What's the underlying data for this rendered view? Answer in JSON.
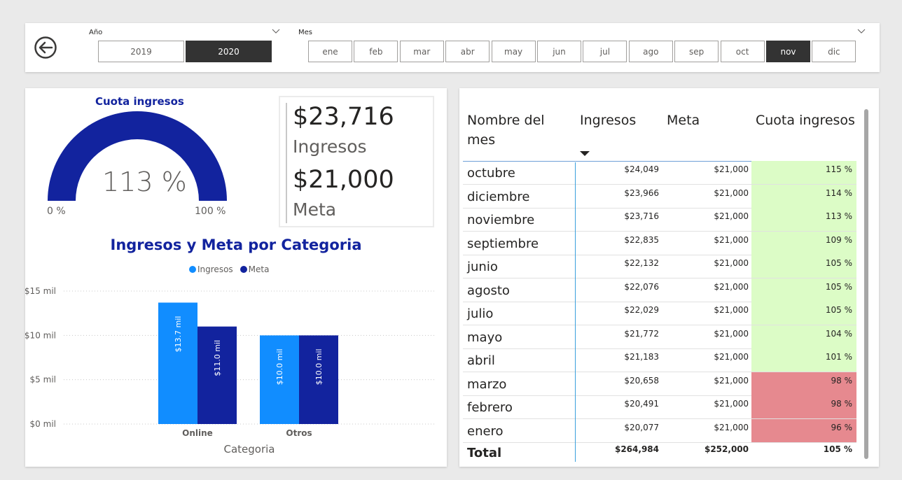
{
  "slicers": {
    "year": {
      "title": "Año",
      "options": [
        "2019",
        "2020"
      ],
      "selected": "2020"
    },
    "month": {
      "title": "Mes",
      "options": [
        "ene",
        "feb",
        "mar",
        "abr",
        "may",
        "jun",
        "jul",
        "ago",
        "sep",
        "oct",
        "nov",
        "dic"
      ],
      "selected": "nov"
    }
  },
  "gauge": {
    "title": "Cuota ingresos",
    "value": "113 %",
    "min": "0 %",
    "max": "100 %",
    "color": "#12239e"
  },
  "kpis": [
    {
      "value": "$23,716",
      "label": "Ingresos"
    },
    {
      "value": "$21,000",
      "label": "Meta"
    }
  ],
  "chart_data": {
    "type": "bar",
    "title": "Ingresos y Meta por Categoria",
    "xlabel": "Categoria",
    "ylabel": "",
    "categories": [
      "Online",
      "Otros"
    ],
    "series": [
      {
        "name": "Ingresos",
        "values": [
          13.7,
          10.0
        ],
        "labels": [
          "$13.7 mil",
          "$10.0 mil"
        ],
        "color": "#118dff"
      },
      {
        "name": "Meta",
        "values": [
          11.0,
          10.0
        ],
        "labels": [
          "$11.0 mil",
          "$10.0 mil"
        ],
        "color": "#12239e"
      }
    ],
    "yticks": [
      "$0 mil",
      "$5 mil",
      "$10 mil",
      "$15 mil"
    ],
    "ylim": [
      0,
      15
    ],
    "legend": "top-center",
    "grid": true
  },
  "table": {
    "headers": {
      "name": [
        "Nombre del",
        "mes"
      ],
      "ingresos": "Ingresos",
      "meta": "Meta",
      "cuota": "Cuota ingresos"
    },
    "rows": [
      {
        "mes": "octubre",
        "ingresos": "$24,049",
        "meta": "$21,000",
        "cuota": "115 %",
        "status": "good"
      },
      {
        "mes": "diciembre",
        "ingresos": "$23,966",
        "meta": "$21,000",
        "cuota": "114 %",
        "status": "good"
      },
      {
        "mes": "noviembre",
        "ingresos": "$23,716",
        "meta": "$21,000",
        "cuota": "113 %",
        "status": "good"
      },
      {
        "mes": "septiembre",
        "ingresos": "$22,835",
        "meta": "$21,000",
        "cuota": "109 %",
        "status": "good"
      },
      {
        "mes": "junio",
        "ingresos": "$22,132",
        "meta": "$21,000",
        "cuota": "105 %",
        "status": "good"
      },
      {
        "mes": "agosto",
        "ingresos": "$22,076",
        "meta": "$21,000",
        "cuota": "105 %",
        "status": "good"
      },
      {
        "mes": "julio",
        "ingresos": "$22,029",
        "meta": "$21,000",
        "cuota": "105 %",
        "status": "good"
      },
      {
        "mes": "mayo",
        "ingresos": "$21,772",
        "meta": "$21,000",
        "cuota": "104 %",
        "status": "good"
      },
      {
        "mes": "abril",
        "ingresos": "$21,183",
        "meta": "$21,000",
        "cuota": "101 %",
        "status": "good"
      },
      {
        "mes": "marzo",
        "ingresos": "$20,658",
        "meta": "$21,000",
        "cuota": "98 %",
        "status": "bad"
      },
      {
        "mes": "febrero",
        "ingresos": "$20,491",
        "meta": "$21,000",
        "cuota": "98 %",
        "status": "bad"
      },
      {
        "mes": "enero",
        "ingresos": "$20,077",
        "meta": "$21,000",
        "cuota": "96 %",
        "status": "bad"
      }
    ],
    "total": {
      "mes": "Total",
      "ingresos": "$264,984",
      "meta": "$252,000",
      "cuota": "105 %"
    },
    "colors": {
      "good": "#dcfcc6",
      "bad": "#e6898f"
    }
  }
}
